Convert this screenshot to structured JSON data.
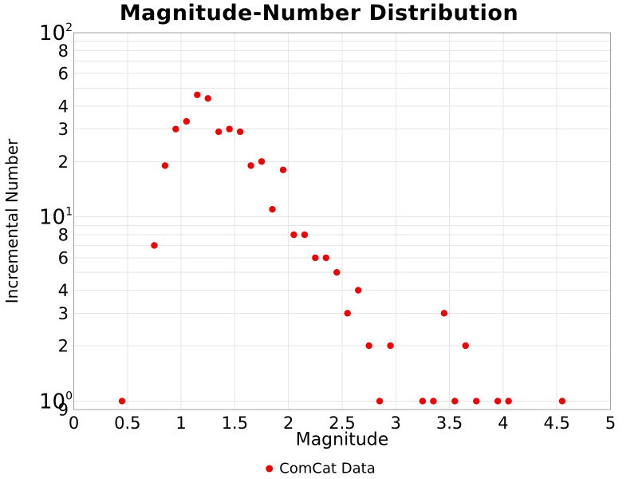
{
  "title": "Magnitude-Number Distribution",
  "colors": {
    "marker": "#ea0606",
    "gridline": "#e6e6e6",
    "axis_border": "#a0a0a0",
    "background": "#ffffff",
    "text": "#000000"
  },
  "chart_data": {
    "type": "scatter",
    "title": "Magnitude-Number Distribution",
    "xlabel": "Magnitude",
    "ylabel": "Incremental Number",
    "grid": true,
    "x_axis": {
      "range": [
        0,
        5
      ],
      "tick_values": [
        0,
        0.5,
        1,
        1.5,
        2,
        2.5,
        3,
        3.5,
        4,
        4.5,
        5
      ],
      "tick_labels": [
        "0",
        "0.5",
        "1",
        "1.5",
        "2",
        "2.5",
        "3",
        "3.5",
        "4",
        "4.5",
        "5"
      ],
      "gridlines": [
        0.5,
        1,
        1.5,
        2,
        2.5,
        3,
        3.5,
        4,
        4.5
      ]
    },
    "y_axis": {
      "scale": "log",
      "range": [
        0.9,
        100
      ],
      "major_ticks": [
        {
          "value": 100,
          "base": "10",
          "exponent": "2"
        },
        {
          "value": 10,
          "base": "10",
          "exponent": "1"
        },
        {
          "value": 1,
          "base": "10",
          "exponent": "0"
        }
      ],
      "minor_tick_labels": [
        {
          "value": 80,
          "label": "8"
        },
        {
          "value": 60,
          "label": "6"
        },
        {
          "value": 40,
          "label": "4"
        },
        {
          "value": 30,
          "label": "3"
        },
        {
          "value": 20,
          "label": "2"
        },
        {
          "value": 8,
          "label": "8"
        },
        {
          "value": 6,
          "label": "6"
        },
        {
          "value": 4,
          "label": "4"
        },
        {
          "value": 3,
          "label": "3"
        },
        {
          "value": 2,
          "label": "2"
        },
        {
          "value": 0.9,
          "label": "9"
        }
      ],
      "gridlines": [
        100,
        90,
        80,
        70,
        60,
        50,
        40,
        30,
        20,
        10,
        9,
        8,
        7,
        6,
        5,
        4,
        3,
        2,
        1
      ]
    },
    "legend": {
      "position": "bottom-center",
      "entries": [
        {
          "label": "ComCat Data",
          "marker": "circle",
          "color": "#ea0606"
        }
      ]
    },
    "series": [
      {
        "name": "ComCat Data",
        "color": "#ea0606",
        "marker": "circle",
        "marker_size": 8,
        "points": [
          [
            0.45,
            1
          ],
          [
            0.75,
            7
          ],
          [
            0.85,
            19
          ],
          [
            0.95,
            30
          ],
          [
            1.05,
            33
          ],
          [
            1.15,
            46
          ],
          [
            1.25,
            44
          ],
          [
            1.35,
            29
          ],
          [
            1.45,
            30
          ],
          [
            1.55,
            29
          ],
          [
            1.65,
            19
          ],
          [
            1.75,
            20
          ],
          [
            1.85,
            11
          ],
          [
            1.95,
            18
          ],
          [
            2.05,
            8
          ],
          [
            2.15,
            8
          ],
          [
            2.25,
            6
          ],
          [
            2.35,
            6
          ],
          [
            2.45,
            5
          ],
          [
            2.55,
            3
          ],
          [
            2.65,
            4
          ],
          [
            2.75,
            2
          ],
          [
            2.85,
            1
          ],
          [
            2.95,
            2
          ],
          [
            3.25,
            1
          ],
          [
            3.35,
            1
          ],
          [
            3.45,
            3
          ],
          [
            3.55,
            1
          ],
          [
            3.65,
            2
          ],
          [
            3.75,
            1
          ],
          [
            3.95,
            1
          ],
          [
            4.05,
            1
          ],
          [
            4.55,
            1
          ]
        ]
      }
    ]
  }
}
